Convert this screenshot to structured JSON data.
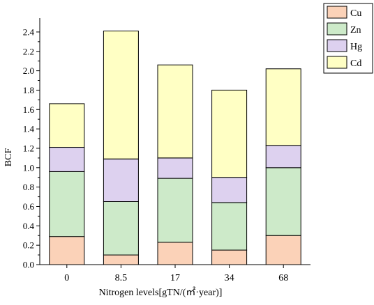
{
  "chart_data": {
    "type": "bar",
    "stacked": true,
    "categories": [
      "0",
      "8.5",
      "17",
      "34",
      "68"
    ],
    "series": [
      {
        "name": "Cu",
        "color": "#FBD2B8",
        "values": [
          0.29,
          0.1,
          0.23,
          0.15,
          0.3
        ]
      },
      {
        "name": "Zn",
        "color": "#CDEAC9",
        "values": [
          0.67,
          0.55,
          0.66,
          0.49,
          0.7
        ]
      },
      {
        "name": "Hg",
        "color": "#DDD1EF",
        "values": [
          0.25,
          0.44,
          0.21,
          0.26,
          0.23
        ]
      },
      {
        "name": "Cd",
        "color": "#FFFFC4",
        "values": [
          0.45,
          1.32,
          0.96,
          0.9,
          0.79
        ]
      }
    ],
    "xlabel": "Nitrogen levels[gTN/(㎡·year)]",
    "ylabel": "BCF",
    "ylim": [
      0,
      2.5
    ],
    "yticks": [
      "0.0",
      "0.2",
      "0.4",
      "0.6",
      "0.8",
      "1.0",
      "1.2",
      "1.4",
      "1.6",
      "1.8",
      "2.0",
      "2.2",
      "2.4"
    ],
    "grid": false,
    "legend_position": "top-right"
  }
}
